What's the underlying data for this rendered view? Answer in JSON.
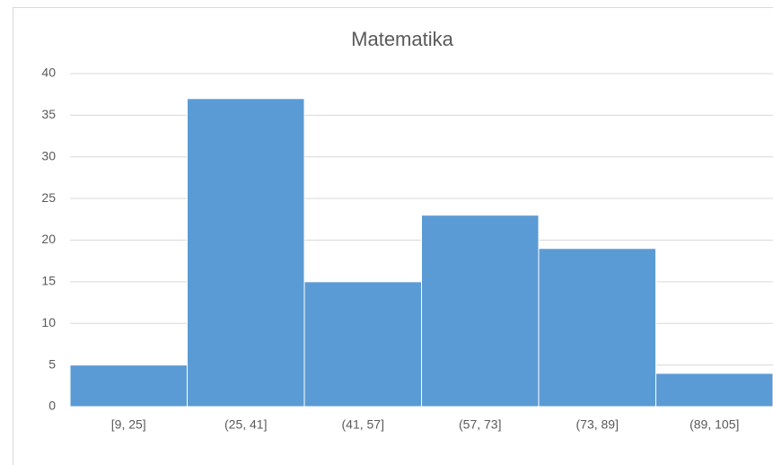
{
  "chart_data": {
    "type": "bar",
    "title": "Matematika",
    "categories": [
      "[9, 25]",
      "(25, 41]",
      "(41, 57]",
      "(57, 73]",
      "(73, 89]",
      "(89, 105]"
    ],
    "values": [
      5,
      37,
      15,
      23,
      19,
      4
    ],
    "color": "#5b9bd5",
    "ylim": [
      0,
      40
    ],
    "yticks": [
      0,
      5,
      10,
      15,
      20,
      25,
      30,
      35,
      40
    ],
    "grid": true
  }
}
